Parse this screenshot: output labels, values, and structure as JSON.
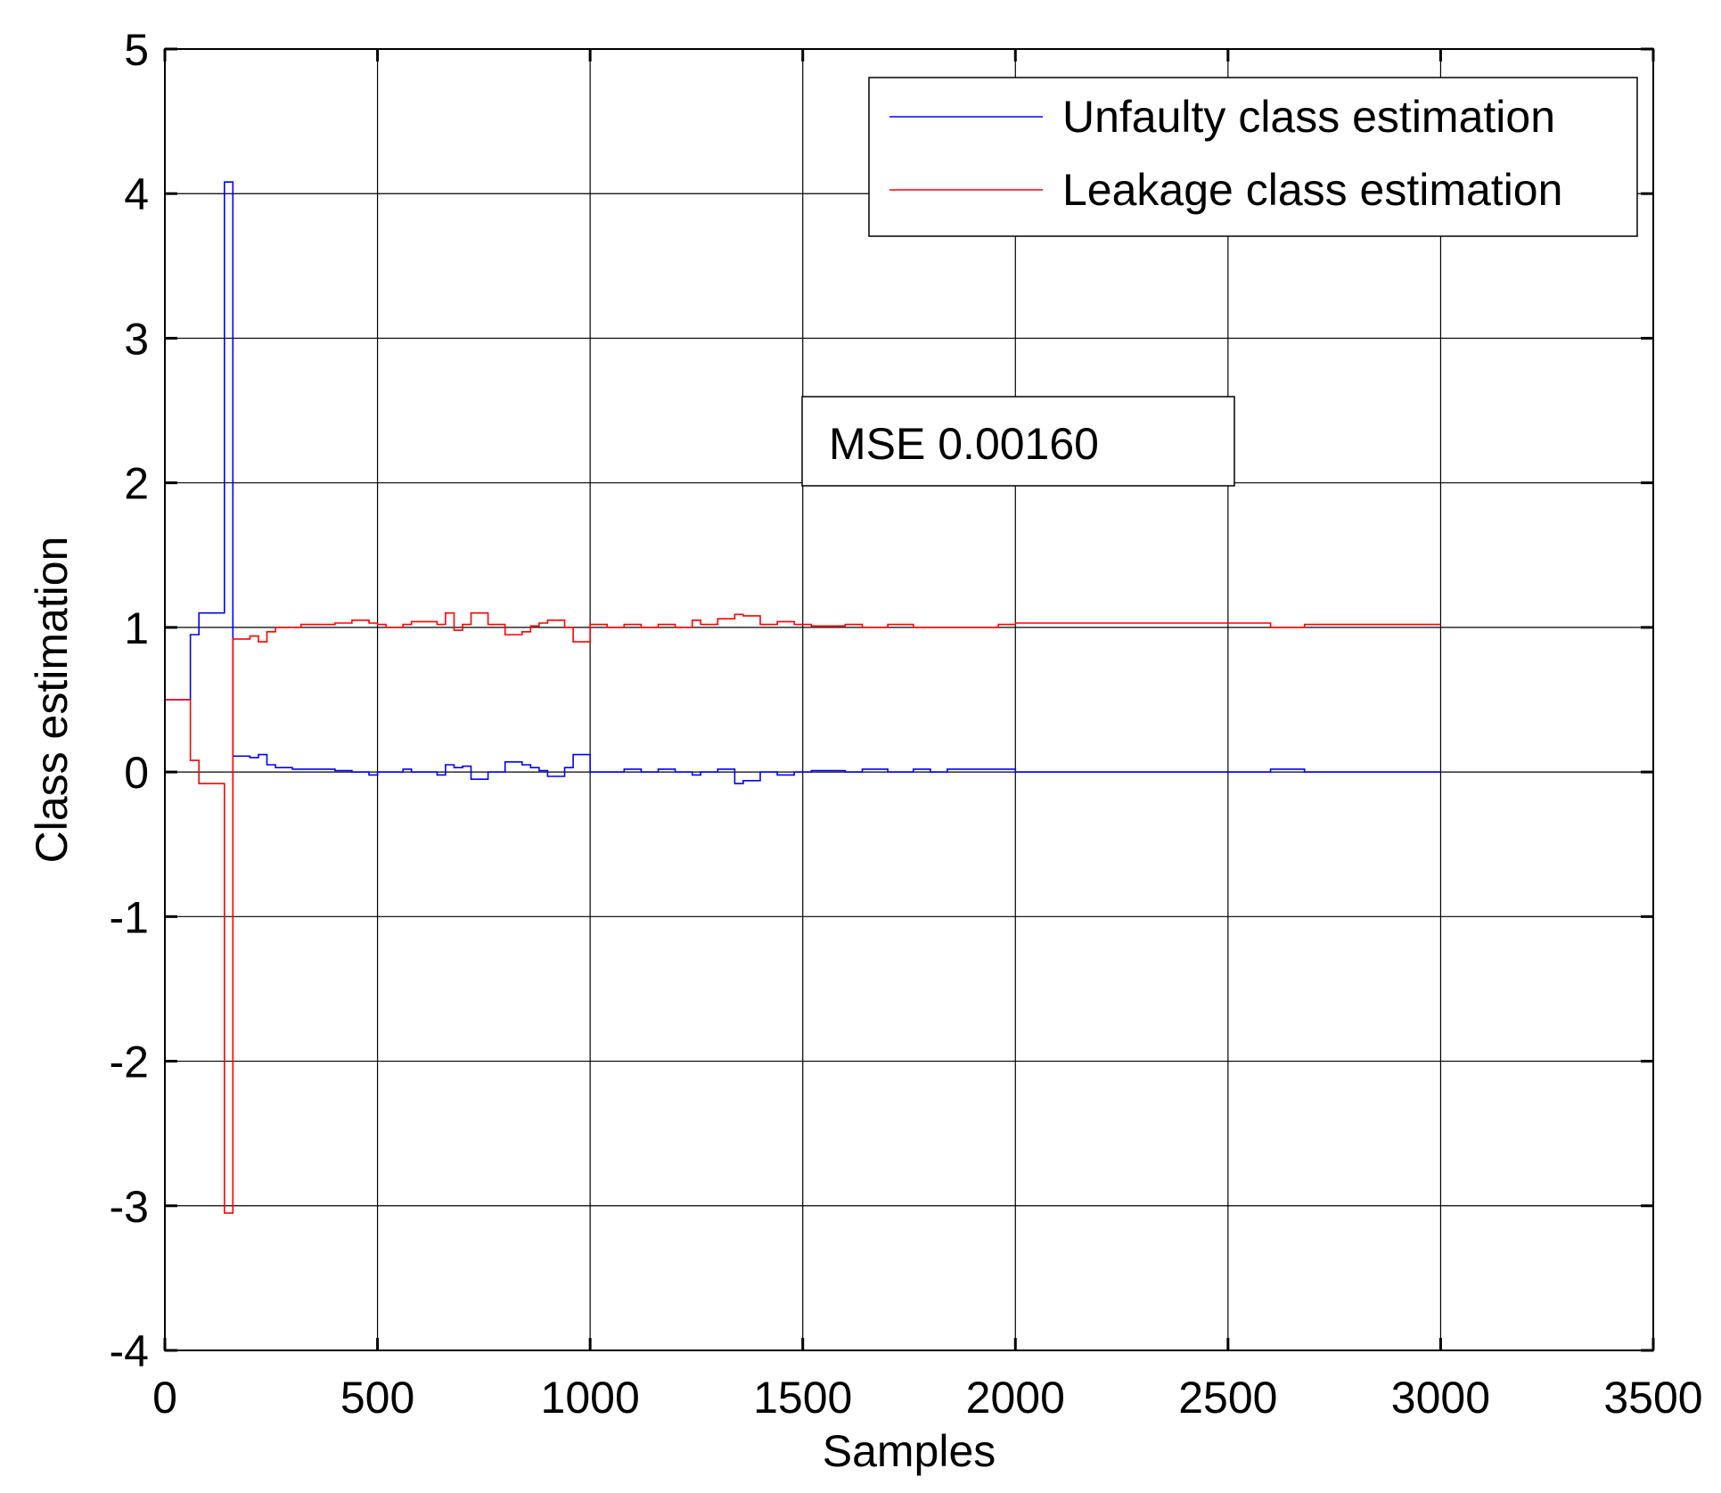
{
  "chart_data": {
    "type": "line",
    "title": "",
    "xlabel": "Samples",
    "ylabel": "Class estimation",
    "xlim": [
      0,
      3500
    ],
    "ylim": [
      -4,
      5
    ],
    "xticks": [
      0,
      500,
      1000,
      1500,
      2000,
      2500,
      3000,
      3500
    ],
    "yticks": [
      -4,
      -3,
      -2,
      -1,
      0,
      1,
      2,
      3,
      4,
      5
    ],
    "grid": true,
    "legend_position": "top-right",
    "annotation": "MSE 0.00160",
    "series": [
      {
        "name": "Unfaulty class estimation",
        "color": "#0000ff",
        "step": true,
        "x": [
          0,
          60,
          80,
          120,
          140,
          160,
          180,
          200,
          220,
          240,
          260,
          280,
          300,
          320,
          360,
          400,
          440,
          480,
          500,
          520,
          560,
          580,
          640,
          660,
          680,
          700,
          720,
          760,
          800,
          840,
          860,
          880,
          900,
          940,
          960,
          990,
          1000,
          1040,
          1080,
          1120,
          1160,
          1200,
          1240,
          1260,
          1300,
          1340,
          1360,
          1400,
          1440,
          1480,
          1500,
          1520,
          1600,
          1640,
          1700,
          1760,
          1800,
          1840,
          1900,
          1960,
          2000,
          2600,
          2680,
          3000
        ],
        "values": [
          0.5,
          0.95,
          1.1,
          1.1,
          4.08,
          0.11,
          0.11,
          0.1,
          0.12,
          0.05,
          0.03,
          0.03,
          0.02,
          0.02,
          0.02,
          0.01,
          0.0,
          -0.02,
          0.0,
          0.0,
          0.02,
          0.0,
          -0.02,
          0.05,
          0.03,
          0.04,
          -0.05,
          0.0,
          0.07,
          0.05,
          0.03,
          0.01,
          -0.03,
          0.03,
          0.12,
          0.12,
          0.0,
          0.0,
          0.02,
          0.0,
          0.02,
          0.0,
          -0.02,
          0.0,
          0.02,
          -0.08,
          -0.06,
          0.0,
          -0.02,
          0.0,
          0.0,
          0.01,
          0.0,
          0.02,
          0.0,
          0.02,
          0.0,
          0.02,
          0.02,
          0.02,
          0.0,
          0.02,
          0.0,
          0.0
        ]
      },
      {
        "name": "Leakage class estimation",
        "color": "#ff0000",
        "step": true,
        "x": [
          0,
          60,
          80,
          120,
          140,
          160,
          180,
          200,
          220,
          240,
          260,
          280,
          300,
          320,
          360,
          400,
          440,
          480,
          500,
          520,
          560,
          580,
          640,
          660,
          680,
          700,
          720,
          760,
          800,
          840,
          860,
          880,
          900,
          940,
          960,
          990,
          1000,
          1040,
          1080,
          1120,
          1160,
          1200,
          1240,
          1260,
          1300,
          1340,
          1360,
          1400,
          1440,
          1480,
          1500,
          1520,
          1600,
          1640,
          1700,
          1760,
          1800,
          1840,
          1900,
          1960,
          2000,
          2600,
          2680,
          3000
        ],
        "values": [
          0.5,
          0.08,
          -0.08,
          -0.08,
          -3.05,
          0.92,
          0.92,
          0.94,
          0.9,
          0.97,
          1.0,
          1.0,
          1.0,
          1.02,
          1.02,
          1.03,
          1.05,
          1.03,
          1.02,
          1.0,
          1.02,
          1.04,
          1.02,
          1.1,
          0.98,
          1.02,
          1.1,
          1.02,
          0.95,
          0.97,
          1.01,
          1.03,
          1.05,
          1.0,
          0.9,
          0.9,
          1.02,
          1.0,
          1.02,
          1.0,
          1.02,
          1.0,
          1.05,
          1.02,
          1.06,
          1.09,
          1.08,
          1.02,
          1.04,
          1.02,
          1.02,
          1.01,
          1.02,
          1.0,
          1.02,
          1.0,
          1.0,
          1.0,
          1.0,
          1.02,
          1.03,
          1.0,
          1.02,
          1.02
        ]
      }
    ]
  }
}
